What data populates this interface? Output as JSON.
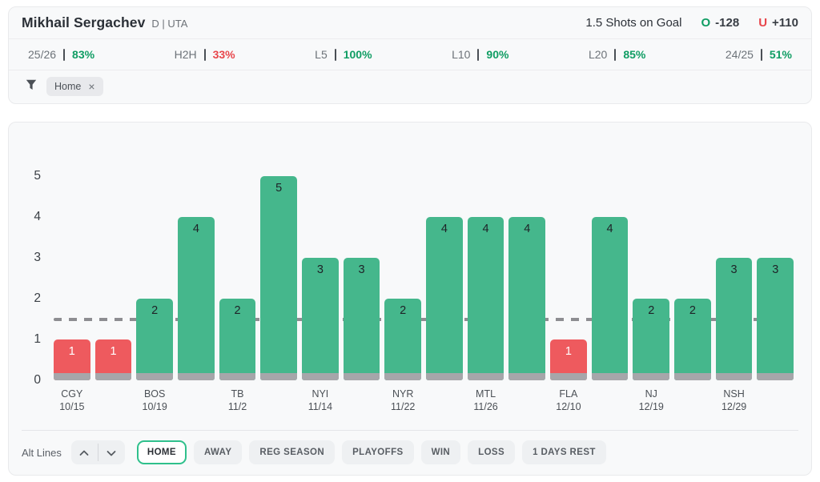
{
  "header": {
    "player_name": "Mikhail Sergachev",
    "player_meta": "D | UTA",
    "prop_label": "1.5 Shots on Goal",
    "over_letter": "O",
    "over_odds": "-128",
    "under_letter": "U",
    "under_odds": "+110"
  },
  "stats": [
    {
      "label": "25/26",
      "value": "83%",
      "status": "green"
    },
    {
      "label": "H2H",
      "value": "33%",
      "status": "red"
    },
    {
      "label": "L5",
      "value": "100%",
      "status": "green"
    },
    {
      "label": "L10",
      "value": "90%",
      "status": "green"
    },
    {
      "label": "L20",
      "value": "85%",
      "status": "green"
    },
    {
      "label": "24/25",
      "value": "51%",
      "status": "green"
    }
  ],
  "filter": {
    "funnel_icon": "filter-funnel-icon",
    "chips": [
      {
        "label": "Home",
        "close": "×"
      }
    ]
  },
  "chart_data": {
    "type": "bar",
    "title": "",
    "xlabel": "",
    "ylabel": "",
    "y_ticks": [
      0,
      1,
      2,
      3,
      4,
      5
    ],
    "ylim": [
      0,
      5.8
    ],
    "reference_line": 1.5,
    "legend": "none",
    "grid": false,
    "bars": [
      {
        "value": 1,
        "color": "red",
        "team": "CGY",
        "date": "10/15"
      },
      {
        "value": 1,
        "color": "red",
        "team": "",
        "date": ""
      },
      {
        "value": 2,
        "color": "green",
        "team": "BOS",
        "date": "10/19"
      },
      {
        "value": 4,
        "color": "green",
        "team": "",
        "date": ""
      },
      {
        "value": 2,
        "color": "green",
        "team": "TB",
        "date": "11/2"
      },
      {
        "value": 5,
        "color": "green",
        "team": "",
        "date": ""
      },
      {
        "value": 3,
        "color": "green",
        "team": "NYI",
        "date": "11/14"
      },
      {
        "value": 3,
        "color": "green",
        "team": "",
        "date": ""
      },
      {
        "value": 2,
        "color": "green",
        "team": "NYR",
        "date": "11/22"
      },
      {
        "value": 4,
        "color": "green",
        "team": "",
        "date": ""
      },
      {
        "value": 4,
        "color": "green",
        "team": "MTL",
        "date": "11/26"
      },
      {
        "value": 4,
        "color": "green",
        "team": "",
        "date": ""
      },
      {
        "value": 1,
        "color": "red",
        "team": "FLA",
        "date": "12/10"
      },
      {
        "value": 4,
        "color": "green",
        "team": "",
        "date": ""
      },
      {
        "value": 2,
        "color": "green",
        "team": "NJ",
        "date": "12/19"
      },
      {
        "value": 2,
        "color": "green",
        "team": "",
        "date": ""
      },
      {
        "value": 3,
        "color": "green",
        "team": "NSH",
        "date": "12/29"
      },
      {
        "value": 3,
        "color": "green",
        "team": "",
        "date": ""
      }
    ]
  },
  "controls": {
    "alt_lines_label": "Alt Lines",
    "stepper_up_icon": "chevron-up-icon",
    "stepper_down_icon": "chevron-down-icon",
    "buttons": [
      {
        "label": "HOME",
        "active": true
      },
      {
        "label": "AWAY",
        "active": false
      },
      {
        "label": "REG SEASON",
        "active": false
      },
      {
        "label": "PLAYOFFS",
        "active": false
      },
      {
        "label": "WIN",
        "active": false
      },
      {
        "label": "LOSS",
        "active": false
      },
      {
        "label": "1 DAYS REST",
        "active": false
      }
    ]
  },
  "colors": {
    "bar_green": "#45b78c",
    "bar_red": "#ee5a5e",
    "bar_base_gray": "#a6a6aa",
    "dashed_line": "#8d8d91",
    "over_green": "#0f9d63",
    "under_red": "#e8464b",
    "active_pill_border": "#2fc08c"
  }
}
